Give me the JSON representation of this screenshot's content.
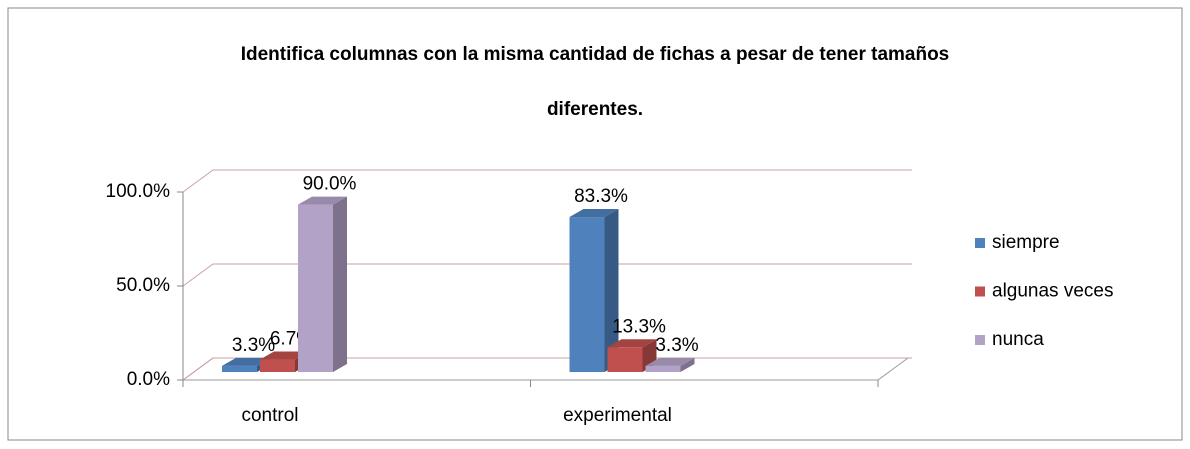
{
  "chart_data": {
    "type": "bar3d",
    "title": [
      "Identifica columnas con la misma cantidad de fichas  a pesar de tener tamaños",
      "diferentes."
    ],
    "categories": [
      "control",
      "experimental"
    ],
    "series": [
      {
        "name": "siempre",
        "color": "#4f81bd",
        "values": [
          3.3,
          83.3
        ],
        "value_labels": [
          "3.3%",
          "83.3%"
        ]
      },
      {
        "name": "algunas veces",
        "color": "#c0504d",
        "values": [
          6.7,
          13.3
        ],
        "value_labels": [
          "6.7%",
          "13.3%"
        ]
      },
      {
        "name": "nunca",
        "color": "#b3a2c7",
        "values": [
          90.0,
          3.3
        ],
        "value_labels": [
          "90.0%",
          "3.3%"
        ]
      }
    ],
    "ylim": [
      0,
      100
    ],
    "yticks": [
      {
        "value": 0,
        "label": "0.0%"
      },
      {
        "value": 50,
        "label": "50.0%"
      },
      {
        "value": 100,
        "label": "100.0%"
      }
    ],
    "grid": true,
    "legend": "right"
  }
}
